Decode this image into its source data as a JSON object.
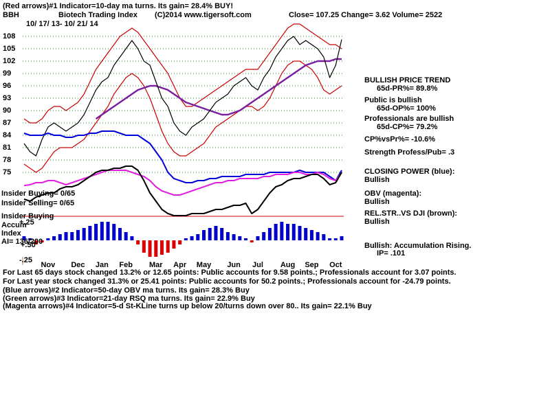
{
  "chart_data": {
    "type": "line",
    "header_note": "(Red arrows)#1 Indicator=10-day ma turns. Its gain= 28.4% BUY!",
    "ticker": "BBH",
    "title": "Biotech Trading Index",
    "copyright": "(C)2014 www.tigersoft.com",
    "quote": "Close=  107.25  Change= 3.62 Volume= 2522",
    "date_range": "10/ 17/ 13- 10/ 21/ 14",
    "right_notes": [
      "BULLISH PRICE TREND",
      "65d-PR%= 89.8%",
      "Public is bullish",
      "65d-OP%= 100%",
      "Professionals are bullish",
      "65d-CP%= 79.2%",
      "CP%vsPr%= -10.6%",
      "Strength Profess/Pub= .3",
      "CLOSING POWER (blue):",
      "Bullish",
      "OBV (magenta):",
      "Bullish",
      "REL.STR..VS DJI (brown):",
      "Bullish",
      "Bullish: Accumulation Rising.",
      "IP=  .101"
    ],
    "left_notes": [
      "Insider Buying= 0/65",
      "Insider Selling= 0/65",
      "Insider Buying",
      "Accum",
      "Index",
      "AI= 136/200",
      "+.25",
      "+.50",
      "-.25"
    ],
    "footer_notes": [
      "For Last 65 days stock changed  13.2% or  12.65 points:  Public accounts for  9.58 points.;  Professionals account for  3.07 points.",
      "For Last year stock changed  31.3% or  25.41 points:  Public accounts for  50.2 points.;  Professionals account for -24.79 points.",
      "(Blue arrows)#2 Indicator=50-day OBV ma turns. Its gain= 28.3% Buy",
      "(Green arrows)#3 Indicator=21-day RSQ ma turns. Its gain= 22.9% Buy",
      "(Magenta arrows)#4 Indicator=5-d St-KLine turns up below 20/turns down over 80.. Its gain= 22.1% Buy"
    ],
    "categories": [
      null,
      null,
      null,
      null,
      "Nov",
      null,
      null,
      null,
      null,
      "Dec",
      null,
      null,
      null,
      "Jan",
      null,
      null,
      null,
      "Feb",
      null,
      null,
      null,
      null,
      "Mar",
      null,
      null,
      null,
      "Apr",
      null,
      null,
      null,
      "May",
      null,
      null,
      null,
      null,
      "Jun",
      null,
      null,
      null,
      "Jul",
      null,
      null,
      null,
      null,
      "Aug",
      null,
      null,
      null,
      "Sep",
      null,
      null,
      null,
      "Oct",
      null
    ],
    "ylim": [
      52,
      112
    ],
    "yticks": [
      75,
      78,
      81,
      84,
      87,
      90,
      93,
      96,
      99,
      102,
      105,
      108
    ],
    "grid": true,
    "y2lim": [
      -0.5,
      0.5
    ],
    "series": [
      {
        "color": "#cc0000",
        "values": [
          88,
          87,
          87,
          88,
          90,
          91,
          91,
          90,
          91,
          92,
          94,
          97,
          100,
          102,
          104,
          106,
          108,
          109,
          110,
          109,
          107,
          105,
          103,
          101,
          99,
          96,
          93,
          91,
          91,
          92,
          93,
          94,
          95,
          96,
          97,
          98,
          99,
          100,
          100,
          100,
          102,
          104,
          106,
          108,
          110,
          111,
          111,
          110,
          109,
          108,
          107,
          106,
          106,
          105
        ]
      },
      {
        "color": "#cc0000",
        "values": [
          77,
          76,
          75,
          76,
          78,
          80,
          81,
          81,
          81,
          82,
          83,
          85,
          87,
          89,
          91,
          94,
          96,
          98,
          99,
          98,
          96,
          93,
          89,
          85,
          82,
          80,
          79,
          79,
          80,
          81,
          82,
          84,
          86,
          87,
          88,
          89,
          90,
          91,
          91,
          90,
          91,
          93,
          96,
          99,
          101,
          102,
          102,
          101,
          100,
          98,
          95,
          94,
          95,
          96
        ]
      },
      {
        "color": "#7a1fa0",
        "values": [
          null,
          null,
          null,
          null,
          null,
          null,
          null,
          null,
          null,
          null,
          null,
          null,
          88,
          89,
          90,
          91,
          92,
          93,
          94,
          95,
          95.5,
          96,
          96,
          95.5,
          95,
          94,
          93,
          92,
          91.5,
          91,
          90.5,
          90,
          89.5,
          89,
          89,
          89.5,
          90,
          91,
          92,
          93,
          94,
          95,
          96,
          97,
          98,
          99,
          100,
          101,
          101.5,
          102,
          102,
          102,
          102.5,
          102.5
        ]
      },
      {
        "color": "#000000",
        "values": [
          82,
          80,
          79,
          83,
          86,
          87,
          86,
          85,
          86,
          87,
          89,
          92,
          95,
          97,
          98,
          101,
          103,
          105,
          107,
          105,
          102,
          101,
          97,
          93,
          91,
          87,
          85,
          84,
          86,
          87,
          88,
          90,
          92,
          93,
          94,
          96,
          97,
          98,
          96,
          95,
          98,
          100,
          103,
          105,
          107,
          108,
          106,
          107,
          106,
          105,
          103,
          98,
          101,
          107.25
        ]
      },
      {
        "color": "#0000dd",
        "values": [
          84.5,
          84,
          84,
          84,
          84.5,
          84,
          84,
          83.5,
          83.5,
          84,
          84,
          84.5,
          84.5,
          85,
          85,
          85,
          84.5,
          84,
          84,
          84,
          83,
          82,
          80,
          78,
          75,
          73.5,
          73,
          72.5,
          72.5,
          73,
          73,
          73.5,
          73.5,
          74,
          74,
          74,
          74,
          74.5,
          74.5,
          74.5,
          74.5,
          75,
          75,
          75,
          75,
          75,
          75.5,
          75,
          75,
          75,
          75,
          74,
          73,
          75.5
        ]
      },
      {
        "color": "#e020e0",
        "values": [
          71.8,
          72,
          72.5,
          72.5,
          73,
          73,
          72.5,
          72,
          72.5,
          73,
          73.5,
          74,
          74.5,
          75,
          75.5,
          75.5,
          75.5,
          75.5,
          75,
          74.5,
          74,
          73,
          71.5,
          70.5,
          70,
          69.5,
          69.5,
          70,
          70.5,
          71,
          71.5,
          72,
          72.5,
          72.5,
          73,
          73,
          73.5,
          73.5,
          73.5,
          73.5,
          74,
          74,
          74.5,
          74.5,
          74.5,
          75,
          75,
          74.5,
          74.5,
          75,
          74.5,
          73.5,
          73,
          75
        ]
      },
      {
        "color": "#000000",
        "values": [
          68.5,
          68,
          69,
          69.5,
          70,
          70,
          71,
          71.5,
          71.5,
          72,
          73,
          74,
          75,
          75.5,
          75.5,
          76,
          76,
          76.5,
          76.5,
          75.5,
          73,
          70,
          68,
          66,
          65,
          64.5,
          64.5,
          64.5,
          65,
          65,
          65,
          65.5,
          66,
          66,
          66.5,
          67,
          67,
          67.5,
          65,
          66,
          68,
          70,
          71.5,
          72,
          73,
          73.5,
          73.5,
          74,
          74.5,
          74.5,
          73.5,
          72,
          72.5,
          75
        ]
      },
      {
        "color": "#0000cc",
        "negative_color": "#dd0000",
        "axis": "y2",
        "values": [
          0.1,
          0.05,
          -0.1,
          -0.05,
          0.05,
          0.1,
          0.15,
          0.2,
          0.2,
          0.25,
          0.3,
          0.35,
          0.4,
          0.45,
          0.45,
          0.4,
          0.3,
          0.2,
          0.1,
          -0.1,
          -0.3,
          -0.4,
          -0.4,
          -0.35,
          -0.3,
          -0.2,
          -0.1,
          0.05,
          0.1,
          0.15,
          0.25,
          0.3,
          0.35,
          0.3,
          0.2,
          0.15,
          0.1,
          0.05,
          -0.05,
          0.1,
          0.2,
          0.3,
          0.4,
          0.45,
          0.4,
          0.4,
          0.35,
          0.3,
          0.25,
          0.2,
          0.15,
          0.05,
          0.05,
          0.1
        ]
      }
    ]
  }
}
